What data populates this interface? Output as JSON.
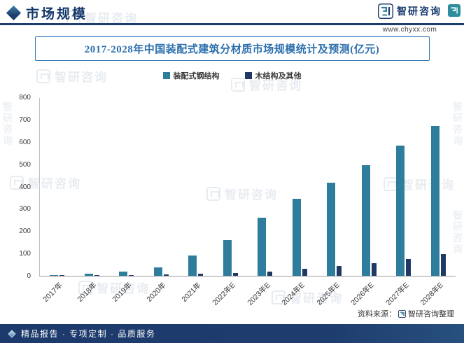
{
  "header": {
    "title": "市场规模",
    "brand": "智研咨询",
    "website": "www.chyxx.com"
  },
  "chart_title": "2017-2028年中国装配式建筑分材质市场规模统计及预测(亿元)",
  "chart_data": {
    "type": "bar",
    "title": "2017-2028年中国装配式建筑分材质市场规模统计及预测(亿元)",
    "categories": [
      "2017年",
      "2018年",
      "2019年",
      "2020年",
      "2021年",
      "2022年E",
      "2023年E",
      "2024年E",
      "2025年E",
      "2026年E",
      "2027年E",
      "2028年E"
    ],
    "series": [
      {
        "name": "装配式钢结构",
        "color": "#2e7d9c",
        "values": [
          4,
          9,
          18,
          39,
          90,
          161,
          262,
          345,
          416,
          497,
          585,
          670
        ]
      },
      {
        "name": "木结构及其他",
        "color": "#1f3864",
        "values": [
          1,
          2,
          3,
          6,
          9,
          13,
          20,
          31,
          43,
          55,
          75,
          96
        ]
      }
    ],
    "xlabel": "",
    "ylabel": "",
    "ylim": [
      0,
      800
    ],
    "ytick_step": 100,
    "legend_position": "top",
    "grid": false
  },
  "source": {
    "prefix": "资料来源：",
    "name": "智研咨询整理"
  },
  "footer": {
    "text": "精品报告 · 专项定制 · 品质服务"
  },
  "watermark": {
    "text": "智研咨询"
  },
  "colors": {
    "accent_navy": "#1e3c6e",
    "accent_teal": "#2e7d9c",
    "title_blue": "#2c6fad"
  }
}
